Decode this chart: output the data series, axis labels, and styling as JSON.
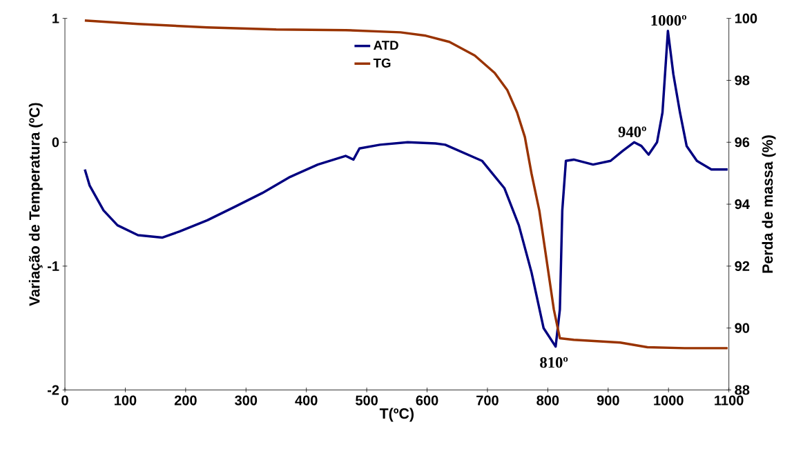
{
  "chart_data": {
    "type": "line",
    "xlabel": "T(ºC)",
    "ylabel": "Variação de Temperatura (ºC)",
    "y2label": "Perda de massa (%)",
    "xlim": [
      0,
      1100
    ],
    "xticks": [
      0,
      100,
      200,
      300,
      400,
      500,
      600,
      700,
      800,
      900,
      1000,
      1100
    ],
    "ylim": [
      -2,
      1
    ],
    "yticks": [
      -2,
      -1,
      0,
      1
    ],
    "y2lim": [
      88,
      100
    ],
    "y2ticks": [
      88,
      90,
      92,
      94,
      96,
      98,
      100
    ],
    "legend": "top",
    "grid": false,
    "marker": "none",
    "line_style": "solid",
    "series": [
      {
        "name": "ATD",
        "color": "#000080",
        "x": [
          33,
          41,
          64,
          87,
          121,
          161,
          190,
          236,
          282,
          327,
          373,
          419,
          465,
          478,
          488,
          522,
          568,
          614,
          630,
          691,
          728,
          752,
          773,
          793,
          813,
          820,
          824,
          830,
          843,
          875,
          904,
          924,
          943,
          955,
          967,
          981,
          990,
          999,
          1008,
          1019,
          1030,
          1047,
          1071,
          1098
        ],
        "values": [
          -0.22,
          -0.35,
          -0.55,
          -0.67,
          -0.75,
          -0.77,
          -0.72,
          -0.63,
          -0.52,
          -0.41,
          -0.28,
          -0.18,
          -0.11,
          -0.14,
          -0.05,
          -0.02,
          0,
          -0.01,
          -0.02,
          -0.15,
          -0.37,
          -0.67,
          -1.05,
          -1.5,
          -1.65,
          -1.35,
          -0.55,
          -0.15,
          -0.14,
          -0.18,
          -0.15,
          -0.07,
          0.0,
          -0.03,
          -0.1,
          0.0,
          0.24,
          0.9,
          0.55,
          0.24,
          -0.03,
          -0.15,
          -0.22,
          -0.22
        ]
      },
      {
        "name": "TG",
        "color": "#993300",
        "axis": "y2",
        "x": [
          33,
          121,
          236,
          350,
          465,
          556,
          598,
          637,
          679,
          712,
          733,
          749,
          762,
          773,
          786,
          798,
          810,
          820,
          843,
          920,
          965,
          1027,
          1098
        ],
        "values": [
          99.93,
          99.82,
          99.71,
          99.64,
          99.62,
          99.55,
          99.44,
          99.24,
          98.8,
          98.24,
          97.68,
          96.97,
          96.17,
          94.99,
          93.79,
          92.2,
          90.6,
          89.67,
          89.62,
          89.53,
          89.38,
          89.35,
          89.35
        ]
      }
    ],
    "annotations": [
      {
        "text": "810º",
        "x": 810,
        "y": -1.65
      },
      {
        "text": "940º",
        "x": 940,
        "y": 0
      },
      {
        "text": "1000º",
        "x": 1000,
        "y": 0.9
      }
    ]
  }
}
